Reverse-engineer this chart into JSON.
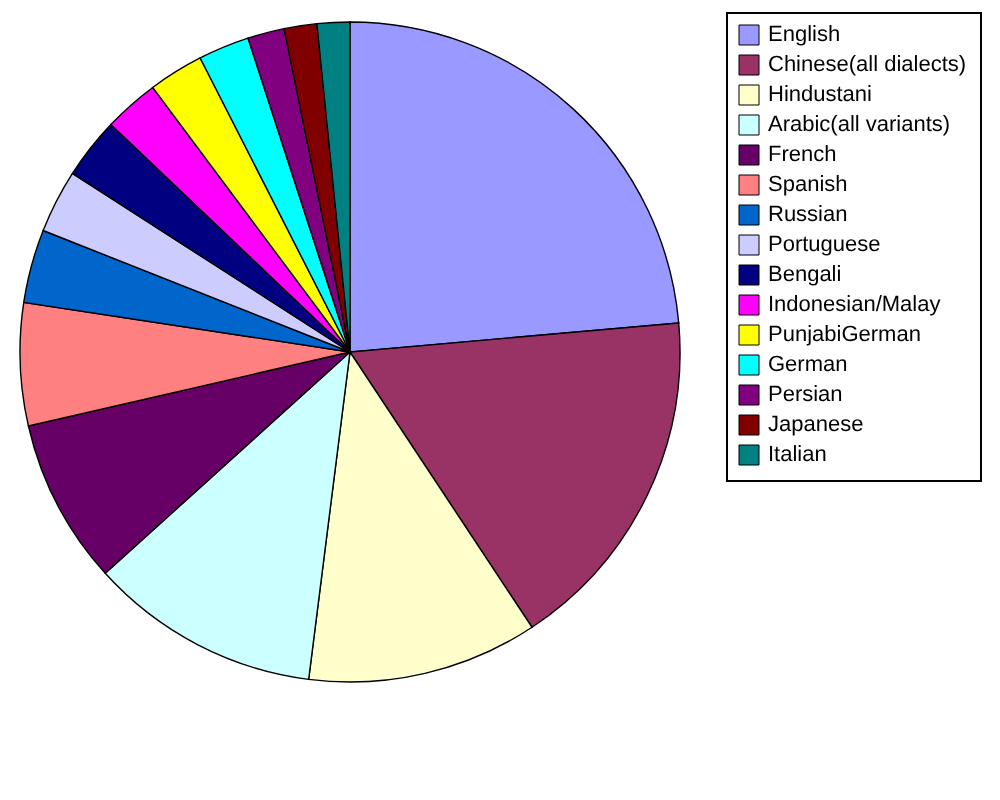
{
  "chart_data": {
    "type": "pie",
    "categories": [
      "English",
      "Chinese(all dialects)",
      "Hindustani",
      "Arabic(all variants)",
      "French",
      "Spanish",
      "Russian",
      "Portuguese",
      "Bengali",
      "Indonesian/Malay",
      "PunjabiGerman",
      "German",
      "Persian",
      "Japanese",
      "Italian"
    ],
    "values": [
      23.6,
      17.1,
      11.3,
      11.3,
      8.1,
      6.0,
      3.6,
      3.1,
      3.0,
      2.7,
      2.7,
      2.5,
      1.8,
      1.6,
      1.6
    ],
    "colors": [
      "#9999ff",
      "#993366",
      "#ffffcc",
      "#ccffff",
      "#660066",
      "#ff8080",
      "#0066cc",
      "#ccccff",
      "#000080",
      "#ff00ff",
      "#ffff00",
      "#00ffff",
      "#800080",
      "#800000",
      "#008080"
    ],
    "legend": "right"
  }
}
